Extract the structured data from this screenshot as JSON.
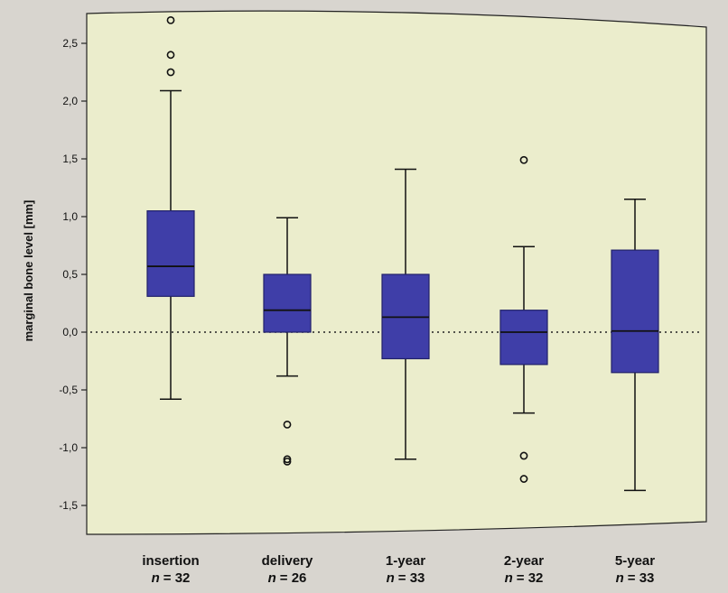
{
  "chart_data": {
    "type": "boxplot",
    "ylabel": "marginal bone level [mm]",
    "ylim": [
      -1.65,
      2.75
    ],
    "yticks": [
      {
        "value": 2.5,
        "label": "2,5"
      },
      {
        "value": 2.0,
        "label": "2,0"
      },
      {
        "value": 1.5,
        "label": "1,5"
      },
      {
        "value": 1.0,
        "label": "1,0"
      },
      {
        "value": 0.5,
        "label": "0,5"
      },
      {
        "value": 0.0,
        "label": "0,0"
      },
      {
        "value": -0.5,
        "label": "-0,5"
      },
      {
        "value": -1.0,
        "label": "-1,0"
      },
      {
        "value": -1.5,
        "label": "-1,5"
      }
    ],
    "reference_line": 0.0,
    "n_prefix": "n",
    "groups": [
      {
        "category": "insertion",
        "n_text": "= 32",
        "whisker_low": -0.58,
        "q1": 0.31,
        "median": 0.57,
        "q3": 1.05,
        "whisker_high": 2.09,
        "outliers": [
          2.25,
          2.4,
          2.7
        ]
      },
      {
        "category": "delivery",
        "n_text": "= 26",
        "whisker_low": -0.38,
        "q1": 0.0,
        "median": 0.19,
        "q3": 0.5,
        "whisker_high": 0.99,
        "outliers": [
          -0.8,
          -1.1,
          -1.12
        ]
      },
      {
        "category": "1-year",
        "n_text": "= 33",
        "whisker_low": -1.1,
        "q1": -0.23,
        "median": 0.13,
        "q3": 0.5,
        "whisker_high": 1.41,
        "outliers": []
      },
      {
        "category": "2-year",
        "n_text": "= 32",
        "whisker_low": -0.7,
        "q1": -0.28,
        "median": 0.0,
        "q3": 0.19,
        "whisker_high": 0.74,
        "outliers": [
          1.49,
          -1.07,
          -1.27
        ]
      },
      {
        "category": "5-year",
        "n_text": "= 33",
        "whisker_low": -1.37,
        "q1": -0.35,
        "median": 0.01,
        "q3": 0.71,
        "whisker_high": 1.15,
        "outliers": []
      }
    ],
    "colors": {
      "plot_background": "#ebedcc",
      "box_fill": "#3f3ea8",
      "box_stroke": "#22226a",
      "line": "#111111"
    }
  }
}
